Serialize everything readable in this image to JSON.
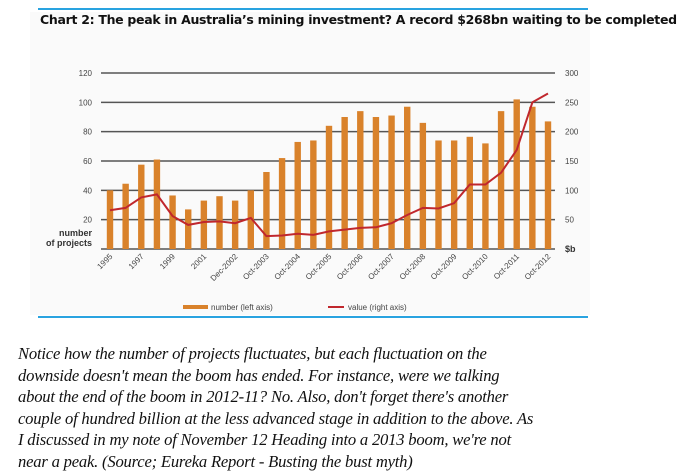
{
  "chart_data": {
    "type": "bar",
    "title": "Chart 2: The peak in Australia’s mining investment? A record $268bn waiting to be completed",
    "categories": [
      "1995",
      "",
      "1997",
      "",
      "1999",
      "",
      "2001",
      "",
      "Dec-2002",
      "",
      "Oct-2003",
      "",
      "Oct-2004",
      "",
      "Oct-2005",
      "",
      "Oct-2006",
      "",
      "Oct-2007",
      "",
      "Oct-2008",
      "",
      "Oct-2009",
      "",
      "Oct-2010",
      "",
      "Oct-2011",
      "",
      "Oct-2012"
    ],
    "series": [
      {
        "name": "number (left axis)",
        "type": "bar",
        "axis": "left",
        "color": "#d9822b",
        "values": [
          40,
          44.5,
          57.5,
          61,
          36.5,
          27,
          33,
          36,
          33,
          40,
          52.5,
          62,
          73,
          74,
          84,
          90,
          94,
          90,
          91,
          97,
          86,
          74,
          74,
          76.5,
          72,
          94,
          102,
          97,
          87
        ]
      },
      {
        "name": "value (right axis)",
        "type": "line",
        "axis": "right",
        "color": "#c0272d",
        "values": [
          66,
          70,
          88,
          93,
          56,
          41,
          46,
          47,
          44,
          53,
          22,
          23,
          26,
          24,
          30,
          33,
          36,
          37,
          44,
          58,
          70,
          69,
          78,
          110,
          110,
          130,
          169,
          250,
          265
        ]
      }
    ],
    "ylabel_left": "number of projects",
    "ylabel_right": "$b",
    "ylim_left": [
      0,
      120
    ],
    "ylim_right": [
      0,
      300
    ],
    "yticks_left": [
      "20",
      "40",
      "60",
      "80",
      "100",
      "120"
    ],
    "yticks_right": [
      "50",
      "100",
      "150",
      "200",
      "250",
      "300"
    ],
    "grid": true,
    "legend_position": "bottom"
  },
  "text": {
    "lines": [
      "Notice how the number of projects fluctuates, but each fluctuation on the",
      "downside doesn't mean the boom has ended. For instance, were we talking",
      "about the end of the boom in 2012-11? No. Also, don't forget there's another",
      "couple of hundred billion at the less advanced stage in addition to the above. As",
      "I discussed in my note of November 12 Heading into a 2013 boom, we're not",
      "near a peak. (Source; Eureka Report - Busting the bust myth)"
    ]
  },
  "colors": {
    "frame": "#29a3e0",
    "grid": "#555555"
  }
}
